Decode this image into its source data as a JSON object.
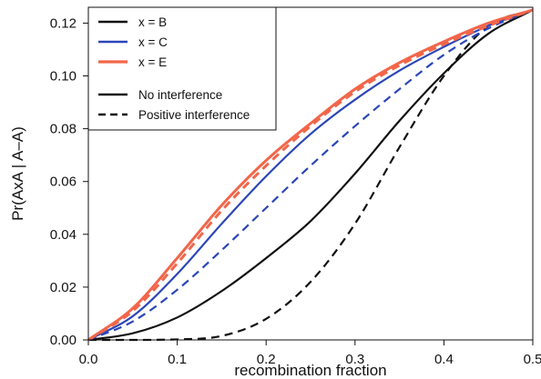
{
  "chart_data": {
    "type": "line",
    "title": "",
    "xlabel": "recombination fraction",
    "ylabel": "Pr(AxA | A–A)",
    "xlim": [
      0.0,
      0.5
    ],
    "ylim": [
      0.0,
      0.126
    ],
    "x_ticks": [
      "0.0",
      "0.1",
      "0.2",
      "0.3",
      "0.4",
      "0.5"
    ],
    "y_ticks": [
      "0.00",
      "0.02",
      "0.04",
      "0.06",
      "0.08",
      "0.10",
      "0.12"
    ],
    "x_tick_values": [
      0.0,
      0.1,
      0.2,
      0.3,
      0.4,
      0.5
    ],
    "y_tick_values": [
      0.0,
      0.02,
      0.04,
      0.06,
      0.08,
      0.1,
      0.12
    ],
    "grid": false,
    "legend_position": "top-left",
    "legend_groups": [
      {
        "entries": [
          {
            "label": "x = B",
            "color": "#111111",
            "dash": "solid"
          },
          {
            "label": "x = C",
            "color": "#2b46b8",
            "dash": "solid"
          },
          {
            "label": "x = E",
            "color": "#f2664a",
            "dash": "solid"
          }
        ]
      },
      {
        "entries": [
          {
            "label": "No interference",
            "color": "#111111",
            "dash": "solid"
          },
          {
            "label": "Positive interference",
            "color": "#111111",
            "dash": "dashed"
          }
        ]
      }
    ],
    "x": [
      0.0,
      0.05,
      0.1,
      0.15,
      0.2,
      0.25,
      0.3,
      0.35,
      0.4,
      0.45,
      0.5
    ],
    "series": [
      {
        "color": "#111111",
        "dash": "solid",
        "values": [
          0.0,
          0.0025,
          0.0085,
          0.0185,
          0.031,
          0.045,
          0.063,
          0.083,
          0.101,
          0.116,
          0.125
        ]
      },
      {
        "color": "#111111",
        "dash": "dashed",
        "values": [
          0.0,
          0.0,
          0.0002,
          0.0015,
          0.008,
          0.022,
          0.044,
          0.073,
          0.1,
          0.119,
          0.125
        ]
      },
      {
        "color": "#2b46b8",
        "dash": "solid",
        "values": [
          0.0,
          0.009,
          0.025,
          0.044,
          0.062,
          0.078,
          0.091,
          0.102,
          0.111,
          0.119,
          0.125
        ]
      },
      {
        "color": "#2b46b8",
        "dash": "dashed",
        "values": [
          0.0,
          0.007,
          0.019,
          0.034,
          0.05,
          0.066,
          0.081,
          0.095,
          0.108,
          0.118,
          0.125
        ]
      },
      {
        "color": "#f2664a",
        "dash": "solid",
        "values": [
          0.0,
          0.012,
          0.031,
          0.051,
          0.068,
          0.082,
          0.095,
          0.105,
          0.113,
          0.12,
          0.125
        ]
      },
      {
        "color": "#f2664a",
        "dash": "dashed",
        "values": [
          0.0,
          0.011,
          0.029,
          0.049,
          0.066,
          0.081,
          0.094,
          0.104,
          0.112,
          0.119,
          0.125
        ]
      }
    ]
  }
}
